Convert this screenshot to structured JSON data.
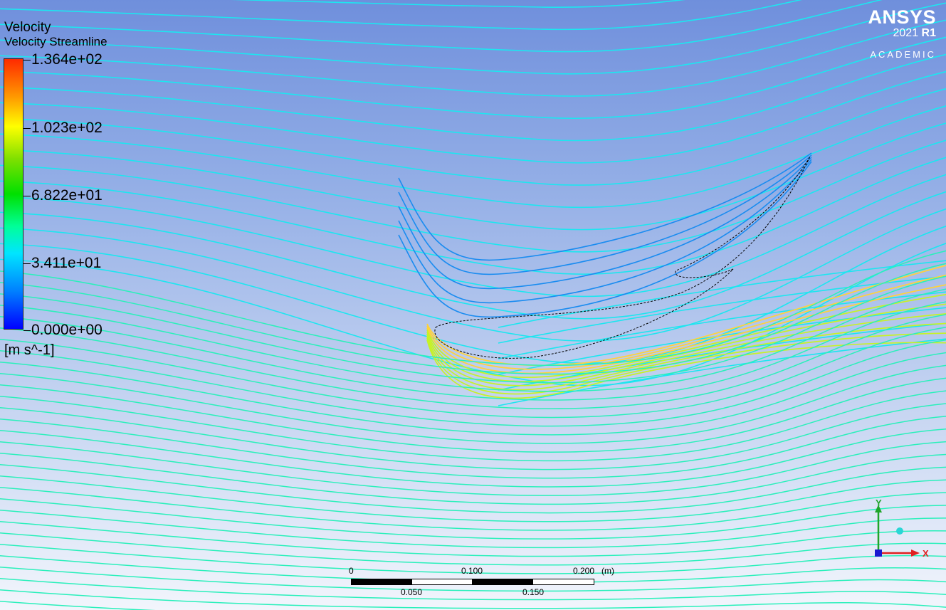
{
  "legend": {
    "title": "Velocity",
    "subtitle": "Velocity Streamline",
    "ticks": [
      "1.364e+02",
      "1.023e+02",
      "6.822e+01",
      "3.411e+01",
      "0.000e+00"
    ],
    "unit": "[m s^-1]"
  },
  "logo": {
    "brand": "ANSYS",
    "version": "2021",
    "release": "R1",
    "edition": "ACADEMIC"
  },
  "scale_bar": {
    "labels_top": [
      "0",
      "0.100",
      "0.200"
    ],
    "unit": "(m)",
    "labels_bottom": [
      "0.050",
      "0.150"
    ]
  },
  "triad": {
    "x_label": "X",
    "y_label": "Y"
  },
  "colors": {
    "streamline_far": "#2af0bb",
    "streamline_upper": "#1ce6f0",
    "streamline_slow": "#1a8cf0",
    "streamline_fast": "#c6f227",
    "streamline_peak": "#ffd23a"
  }
}
